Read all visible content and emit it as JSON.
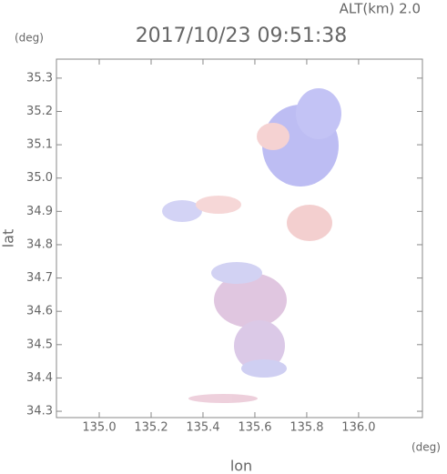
{
  "chart_data": {
    "type": "map",
    "title": "2017/10/23 09:51:38",
    "subtitle": "ALT(km) 2.0",
    "xlabel": "lon",
    "ylabel": "lat",
    "xunit": "(deg)",
    "yunit": "(deg)",
    "xlim": [
      134.835,
      136.246
    ],
    "ylim": [
      34.281,
      35.357
    ],
    "xticks": [
      {
        "value": 135,
        "label": "135.0"
      },
      135.2,
      135.4,
      135.6,
      135.8,
      {
        "value": 136,
        "label": "136.0"
      }
    ],
    "yticks": [
      34.3,
      34.4,
      34.5,
      34.6,
      34.7,
      34.8,
      34.9,
      {
        "value": 35,
        "label": "35.0"
      },
      35.1,
      35.2,
      35.3
    ]
  }
}
